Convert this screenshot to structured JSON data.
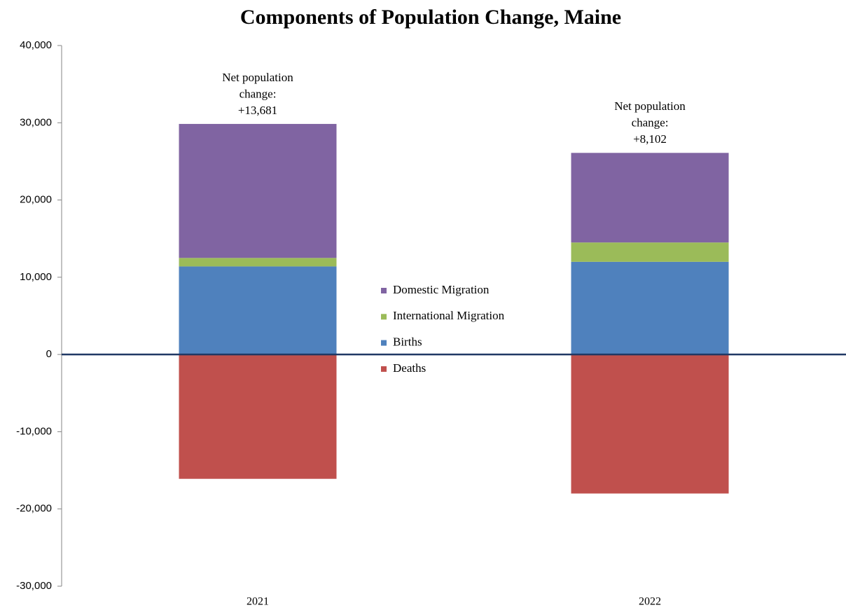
{
  "chart_data": {
    "type": "bar",
    "stacked": true,
    "title": "Components of Population Change, Maine",
    "categories": [
      "2021",
      "2022"
    ],
    "series": [
      {
        "name": "Domestic Migration",
        "color": "#8064a2",
        "values": [
          17350,
          11600
        ]
      },
      {
        "name": "International Migration",
        "color": "#9bbb59",
        "values": [
          1100,
          2500
        ]
      },
      {
        "name": "Births",
        "color": "#4f81bd",
        "values": [
          11400,
          12000
        ]
      },
      {
        "name": "Deaths",
        "color": "#c0504d",
        "values": [
          -16100,
          -18000
        ]
      }
    ],
    "annotations": [
      [
        "Net population",
        "change:",
        "+13,681"
      ],
      [
        "Net population",
        "change:",
        "+8,102"
      ]
    ],
    "ylim": [
      -30000,
      40000
    ],
    "yticks": [
      {
        "value": -30000,
        "label": "-30,000"
      },
      {
        "value": -20000,
        "label": "-20,000"
      },
      {
        "value": -10000,
        "label": "-10,000"
      },
      0,
      {
        "value": 10000,
        "label": "10,000"
      },
      {
        "value": 20000,
        "label": "20,000"
      },
      {
        "value": 30000,
        "label": "30,000"
      },
      {
        "value": 40000,
        "label": "40,000"
      }
    ],
    "grid": false,
    "legend": "center"
  }
}
